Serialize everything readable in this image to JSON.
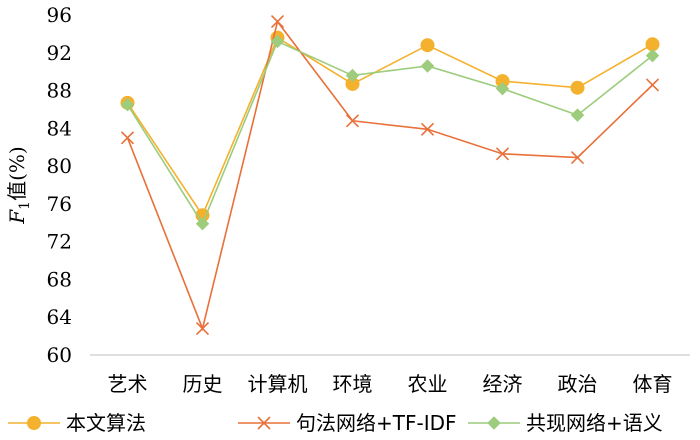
{
  "chart_data": {
    "type": "line",
    "title": "",
    "xlabel": "",
    "ylabel": "F1值(%)",
    "ylabel_parts": {
      "main": "F",
      "sub": "1",
      "rest": "值(%)"
    },
    "ylim": [
      60,
      96
    ],
    "yticks": [
      60,
      64,
      68,
      72,
      76,
      80,
      84,
      88,
      92,
      96
    ],
    "grid": false,
    "legend_position": "bottom",
    "categories": [
      "艺术",
      "历史",
      "计算机",
      "环境",
      "农业",
      "经济",
      "政治",
      "体育"
    ],
    "series": [
      {
        "name": "本文算法",
        "color": "#f4b12d",
        "marker": "circle",
        "values": [
          86.7,
          74.8,
          93.6,
          88.7,
          92.8,
          89.0,
          88.3,
          92.9
        ]
      },
      {
        "name": "句法网络+TF-IDF",
        "color": "#e8703a",
        "marker": "x",
        "values": [
          83.0,
          62.8,
          95.3,
          84.8,
          83.9,
          81.3,
          80.9,
          88.6
        ]
      },
      {
        "name": "共现网络+语义",
        "color": "#9ccc7c",
        "marker": "diamond",
        "values": [
          86.5,
          73.9,
          93.2,
          89.6,
          90.6,
          88.2,
          85.4,
          91.7
        ]
      }
    ]
  }
}
